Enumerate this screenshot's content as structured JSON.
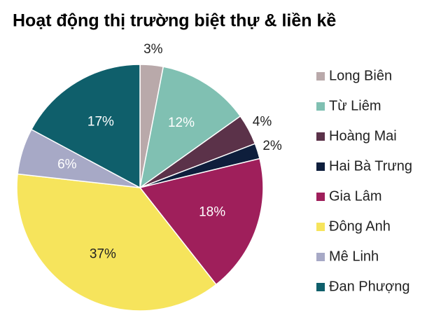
{
  "chart_data": {
    "type": "pie",
    "title": "Hoạt động thị trường biệt thự & liền kề",
    "categories": [
      "Long Biên",
      "Từ Liêm",
      "Hoàng Mai",
      "Hai Bà Trưng",
      "Gia Lâm",
      "Đông Anh",
      "Mê Linh",
      "Đan Phượng"
    ],
    "values": [
      3,
      12,
      4,
      2,
      18,
      37,
      6,
      17
    ],
    "value_labels": [
      "3%",
      "12%",
      "4%",
      "2%",
      "18%",
      "37%",
      "6%",
      "17%"
    ],
    "colors": [
      "#b9a9aa",
      "#80c0b2",
      "#5b3249",
      "#0e1e3c",
      "#9f1f5b",
      "#f6e45c",
      "#a7a9c6",
      "#0f5f6b"
    ],
    "legend": "right"
  }
}
